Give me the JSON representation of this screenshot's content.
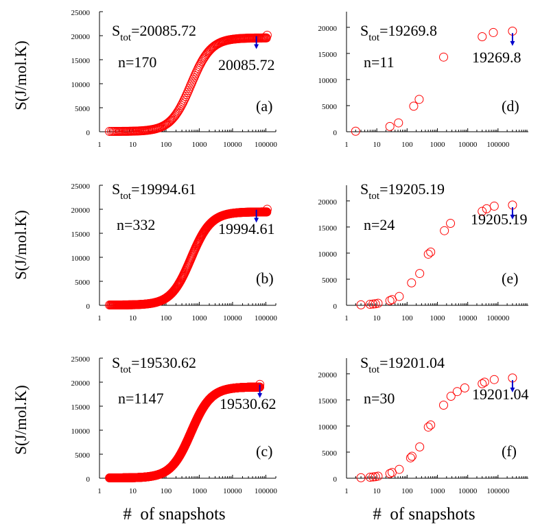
{
  "figure": {
    "ylabel": "S(J/mol.K)",
    "xlabel": "#  of snapshots"
  },
  "chart_data": [
    {
      "id": "a",
      "type": "scatter",
      "panel_label": "(a)",
      "stot_label": "Stot=20085.72",
      "stot_main": "S",
      "stot_sub": "tot",
      "stot_value": "=20085.72",
      "n_label": "n=170",
      "final_label": "20085.72",
      "x_scale": "log",
      "xlim": [
        1,
        200000
      ],
      "ylim": [
        0,
        25000
      ],
      "x_ticks": [
        1,
        10,
        100,
        1000,
        10000,
        100000
      ],
      "x_tick_labels": [
        "1",
        "10",
        "100",
        "1000",
        "10000",
        "100000"
      ],
      "y_ticks": [
        0,
        5000,
        10000,
        15000,
        20000,
        25000
      ],
      "y_tick_labels": [
        "0",
        "5000",
        "10000",
        "15000",
        "20000",
        "25000"
      ],
      "marker": "open-circle",
      "color": "#ff0000",
      "arrow_color": "#0000cc",
      "arrow_x": 52000,
      "arrow_y1": 19900,
      "arrow_y2": 17500,
      "n_points": 170,
      "x_min": 2,
      "x_max": 110000,
      "final_value": 20085.72
    },
    {
      "id": "b",
      "type": "scatter",
      "panel_label": "(b)",
      "stot_label": "Stot=19994.61",
      "stot_main": "S",
      "stot_sub": "tot",
      "stot_value": "=19994.61",
      "n_label": "n=332",
      "final_label": "19994.61",
      "x_scale": "log",
      "xlim": [
        1,
        200000
      ],
      "ylim": [
        0,
        25000
      ],
      "x_ticks": [
        1,
        10,
        100,
        1000,
        10000,
        100000
      ],
      "x_tick_labels": [
        "1",
        "10",
        "100",
        "1000",
        "10000",
        "100000"
      ],
      "y_ticks": [
        0,
        5000,
        10000,
        15000,
        20000,
        25000
      ],
      "y_tick_labels": [
        "0",
        "5000",
        "10000",
        "15000",
        "20000",
        "25000"
      ],
      "marker": "open-circle",
      "color": "#ff0000",
      "arrow_color": "#0000cc",
      "arrow_x": 52000,
      "arrow_y1": 19900,
      "arrow_y2": 17500,
      "n_points": 332,
      "x_min": 2,
      "x_max": 110000,
      "final_value": 19994.61
    },
    {
      "id": "c",
      "type": "scatter",
      "panel_label": "(c)",
      "stot_label": "Stot=19530.62",
      "stot_main": "S",
      "stot_sub": "tot",
      "stot_value": "=19530.62",
      "n_label": "n=1147",
      "final_label": "19530.62",
      "x_scale": "log",
      "xlim": [
        1,
        200000
      ],
      "ylim": [
        0,
        25000
      ],
      "x_ticks": [
        1,
        10,
        100,
        1000,
        10000,
        100000
      ],
      "x_tick_labels": [
        "1",
        "10",
        "100",
        "1000",
        "10000",
        "100000"
      ],
      "y_ticks": [
        0,
        5000,
        10000,
        15000,
        20000,
        25000
      ],
      "y_tick_labels": [
        "0",
        "5000",
        "10000",
        "15000",
        "20000",
        "25000"
      ],
      "marker": "open-circle",
      "color": "#ff0000",
      "arrow_color": "#0000cc",
      "arrow_x": 66000,
      "arrow_y1": 19500,
      "arrow_y2": 17000,
      "n_points": 1147,
      "x_min": 2,
      "x_max": 66000,
      "final_value": 19530.62
    },
    {
      "id": "d",
      "type": "scatter",
      "panel_label": "(d)",
      "stot_label": "Stot=19269.8",
      "stot_main": "S",
      "stot_sub": "tot",
      "stot_value": "=19269.8",
      "n_label": "n=11",
      "final_label": "19269.8",
      "x_scale": "log",
      "xlim": [
        1,
        1000000
      ],
      "ylim": [
        0,
        23000
      ],
      "x_ticks": [
        1,
        10,
        100,
        1000,
        10000,
        100000
      ],
      "x_tick_labels": [
        "1",
        "10",
        "100",
        "1000",
        "10000",
        "100000"
      ],
      "y_ticks": [
        0,
        5000,
        10000,
        15000,
        20000
      ],
      "y_tick_labels": [
        "0",
        "5000",
        "10000",
        "15000",
        "20000"
      ],
      "marker": "open-circle",
      "color": "#ff0000",
      "arrow_color": "#0000cc",
      "arrow_x": 300000,
      "arrow_y1": 18900,
      "arrow_y2": 16700,
      "points": [
        {
          "x": 2,
          "y": 100
        },
        {
          "x": 27,
          "y": 1000
        },
        {
          "x": 52,
          "y": 1700
        },
        {
          "x": 165,
          "y": 4900
        },
        {
          "x": 250,
          "y": 6200
        },
        {
          "x": 1600,
          "y": 14300
        },
        {
          "x": 30000,
          "y": 18200
        },
        {
          "x": 70000,
          "y": 19000
        },
        {
          "x": 300000,
          "y": 19270
        }
      ]
    },
    {
      "id": "e",
      "type": "scatter",
      "panel_label": "(e)",
      "stot_label": "Stot=19205.19",
      "stot_main": "S",
      "stot_sub": "tot",
      "stot_value": "=19205.19",
      "n_label": "n=24",
      "final_label": "19205.19",
      "x_scale": "log",
      "xlim": [
        1,
        1000000
      ],
      "ylim": [
        0,
        23000
      ],
      "x_ticks": [
        1,
        10,
        100,
        1000,
        10000,
        100000
      ],
      "x_tick_labels": [
        "1",
        "10",
        "100",
        "1000",
        "10000",
        "100000"
      ],
      "y_ticks": [
        0,
        5000,
        10000,
        15000,
        20000
      ],
      "y_tick_labels": [
        "0",
        "5000",
        "10000",
        "15000",
        "20000"
      ],
      "marker": "open-circle",
      "color": "#ff0000",
      "arrow_color": "#0000cc",
      "arrow_x": 300000,
      "arrow_y1": 18800,
      "arrow_y2": 16700,
      "points": [
        {
          "x": 3,
          "y": 100
        },
        {
          "x": 6,
          "y": 200
        },
        {
          "x": 7.5,
          "y": 250
        },
        {
          "x": 9,
          "y": 300
        },
        {
          "x": 11,
          "y": 400
        },
        {
          "x": 27,
          "y": 900
        },
        {
          "x": 32,
          "y": 1100
        },
        {
          "x": 55,
          "y": 1700
        },
        {
          "x": 140,
          "y": 4300
        },
        {
          "x": 260,
          "y": 6100
        },
        {
          "x": 500,
          "y": 9800
        },
        {
          "x": 600,
          "y": 10200
        },
        {
          "x": 1700,
          "y": 14300
        },
        {
          "x": 2700,
          "y": 15700
        },
        {
          "x": 30000,
          "y": 18000
        },
        {
          "x": 42000,
          "y": 18500
        },
        {
          "x": 75000,
          "y": 19000
        },
        {
          "x": 300000,
          "y": 19205
        }
      ]
    },
    {
      "id": "f",
      "type": "scatter",
      "panel_label": "(f)",
      "stot_label": "Stot=19201.04",
      "stot_main": "S",
      "stot_sub": "tot",
      "stot_value": "=19201.04",
      "n_label": "n=30",
      "final_label": "19201.04",
      "x_scale": "log",
      "xlim": [
        1,
        1000000
      ],
      "ylim": [
        0,
        23000
      ],
      "x_ticks": [
        1,
        10,
        100,
        1000,
        10000,
        100000
      ],
      "x_tick_labels": [
        "1",
        "10",
        "100",
        "1000",
        "10000",
        "100000"
      ],
      "y_ticks": [
        0,
        5000,
        10000,
        15000,
        20000
      ],
      "y_tick_labels": [
        "0",
        "5000",
        "10000",
        "15000",
        "20000"
      ],
      "marker": "open-circle",
      "color": "#ff0000",
      "arrow_color": "#0000cc",
      "arrow_x": 300000,
      "arrow_y1": 18800,
      "arrow_y2": 16700,
      "points": [
        {
          "x": 3,
          "y": 100
        },
        {
          "x": 6,
          "y": 200
        },
        {
          "x": 7.5,
          "y": 250
        },
        {
          "x": 9,
          "y": 300
        },
        {
          "x": 11,
          "y": 400
        },
        {
          "x": 27,
          "y": 900
        },
        {
          "x": 32,
          "y": 1100
        },
        {
          "x": 55,
          "y": 1700
        },
        {
          "x": 130,
          "y": 3900
        },
        {
          "x": 145,
          "y": 4200
        },
        {
          "x": 260,
          "y": 6000
        },
        {
          "x": 500,
          "y": 9800
        },
        {
          "x": 600,
          "y": 10200
        },
        {
          "x": 1600,
          "y": 14000
        },
        {
          "x": 2800,
          "y": 15700
        },
        {
          "x": 4500,
          "y": 16600
        },
        {
          "x": 8000,
          "y": 17300
        },
        {
          "x": 30000,
          "y": 18100
        },
        {
          "x": 36000,
          "y": 18400
        },
        {
          "x": 75000,
          "y": 18900
        },
        {
          "x": 300000,
          "y": 19201
        }
      ]
    }
  ]
}
